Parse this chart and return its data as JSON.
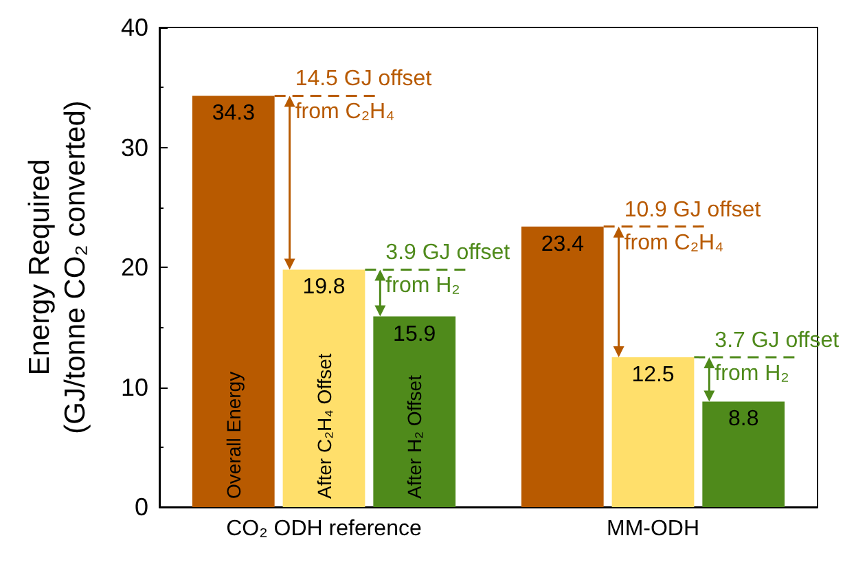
{
  "chart_data": {
    "type": "bar",
    "ylabel": "Energy Required\n(GJ/tonne CO₂ converted)",
    "categories": [
      "CO₂ ODH reference",
      "MM-ODH"
    ],
    "series": [
      {
        "name": "Overall Energy",
        "color": "#b85a00",
        "values": [
          34.3,
          23.4
        ]
      },
      {
        "name": "After C₂H₄ Offset",
        "color": "#ffdf6b",
        "values": [
          19.8,
          12.5
        ]
      },
      {
        "name": "After H₂ Offset",
        "color": "#4f8a1b",
        "values": [
          15.9,
          8.8
        ]
      }
    ],
    "ylim": [
      0,
      40
    ],
    "yticks": [
      0,
      10,
      20,
      30,
      40
    ],
    "grid": false,
    "legend": false,
    "data_labels": true,
    "annotations": [
      "14.5 GJ offset\nfrom C₂H₄",
      "3.9 GJ offset\nfrom H₂",
      "10.9 GJ offset\nfrom C₂H₄",
      "3.7 GJ offset\nfrom H₂"
    ]
  }
}
